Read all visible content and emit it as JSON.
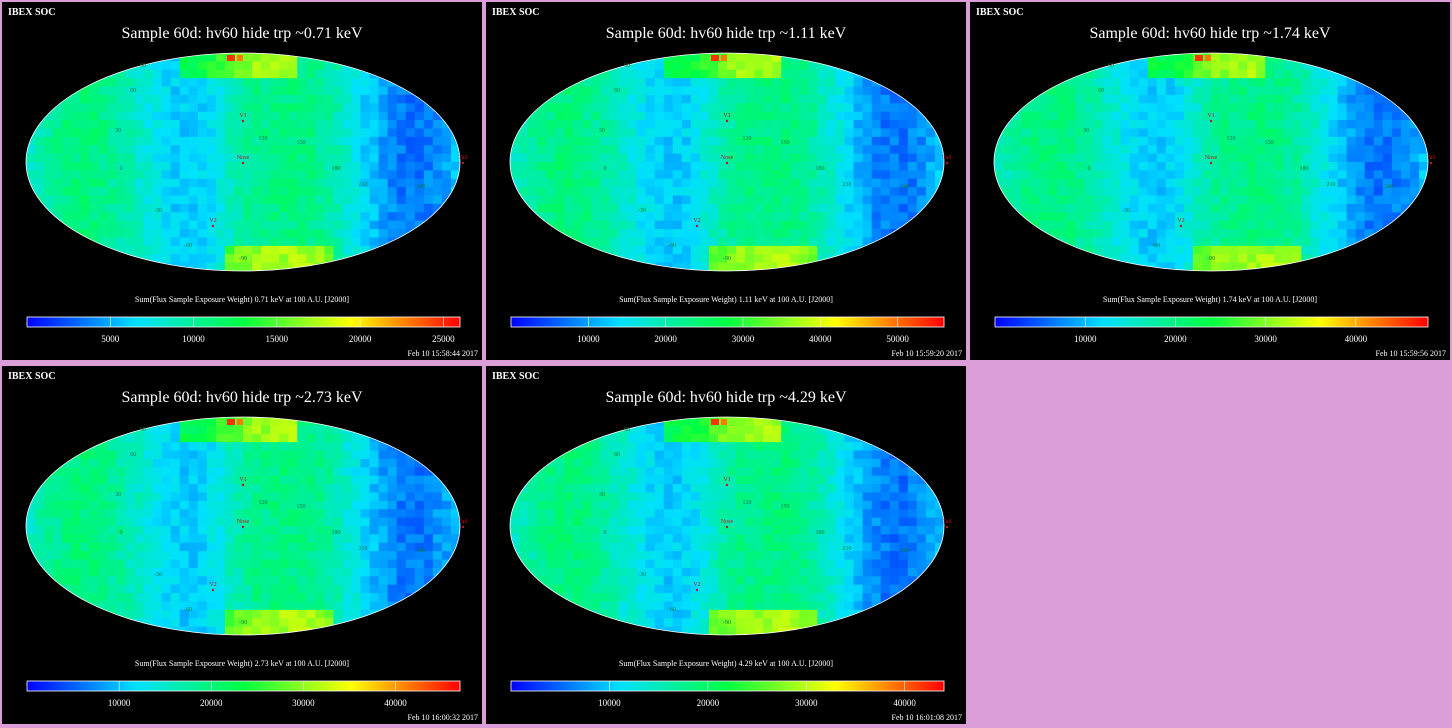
{
  "colors": {
    "page_background": "#dc9ed8",
    "panel_background": "#000000",
    "colormap": [
      "#0000ff",
      "#00e0ff",
      "#00ff40",
      "#ffff00",
      "#ff0000"
    ],
    "grid_label_color": "#0a7a3a",
    "marker_color": "#c01818"
  },
  "grid_labels": [
    "90",
    "60",
    "30",
    "0",
    "-30",
    "-60",
    "-90",
    "120",
    "150",
    "180",
    "210",
    "240"
  ],
  "marker_labels": {
    "v1": "V1",
    "v2": "V2",
    "nose": "Nose",
    "tail": "Tail"
  },
  "chart_data": [
    {
      "type": "heatmap",
      "projection": "mollweide",
      "header": "IBEX SOC",
      "title": "Sample 60d: hv60 hide trp ~0.71 keV",
      "caption": "Sum(Flux Sample Exposure Weight)  0.71 keV at 100 A.U. [J2000]",
      "colorbar_ticks": [
        "5000",
        "10000",
        "15000",
        "20000",
        "25000"
      ],
      "colorbar_range": [
        0,
        26000
      ],
      "timestamp": "Feb 10 15:58:44 2017"
    },
    {
      "type": "heatmap",
      "projection": "mollweide",
      "header": "IBEX SOC",
      "title": "Sample 60d: hv60 hide trp ~1.11 keV",
      "caption": "Sum(Flux Sample Exposure Weight)  1.11 keV at 100 A.U. [J2000]",
      "colorbar_ticks": [
        "10000",
        "20000",
        "30000",
        "40000",
        "50000"
      ],
      "colorbar_range": [
        0,
        56000
      ],
      "timestamp": "Feb 10 15:59:20 2017"
    },
    {
      "type": "heatmap",
      "projection": "mollweide",
      "header": "IBEX SOC",
      "title": "Sample 60d: hv60 hide trp ~1.74 keV",
      "caption": "Sum(Flux Sample Exposure Weight)  1.74 keV at 100 A.U. [J2000]",
      "colorbar_ticks": [
        "10000",
        "20000",
        "30000",
        "40000"
      ],
      "colorbar_range": [
        0,
        48000
      ],
      "timestamp": "Feb 10 15:59:56 2017"
    },
    {
      "type": "heatmap",
      "projection": "mollweide",
      "header": "IBEX SOC",
      "title": "Sample 60d: hv60 hide trp ~2.73 keV",
      "caption": "Sum(Flux Sample Exposure Weight)  2.73 keV at 100 A.U. [J2000]",
      "colorbar_ticks": [
        "10000",
        "20000",
        "30000",
        "40000"
      ],
      "colorbar_range": [
        0,
        47000
      ],
      "timestamp": "Feb 10 16:00:32 2017"
    },
    {
      "type": "heatmap",
      "projection": "mollweide",
      "header": "IBEX SOC",
      "title": "Sample 60d: hv60 hide trp ~4.29 keV",
      "caption": "Sum(Flux Sample Exposure Weight)  4.29 keV at 100 A.U. [J2000]",
      "colorbar_ticks": [
        "10000",
        "20000",
        "30000",
        "40000"
      ],
      "colorbar_range": [
        0,
        44000
      ],
      "timestamp": "Feb 10 16:01:08 2017"
    }
  ]
}
